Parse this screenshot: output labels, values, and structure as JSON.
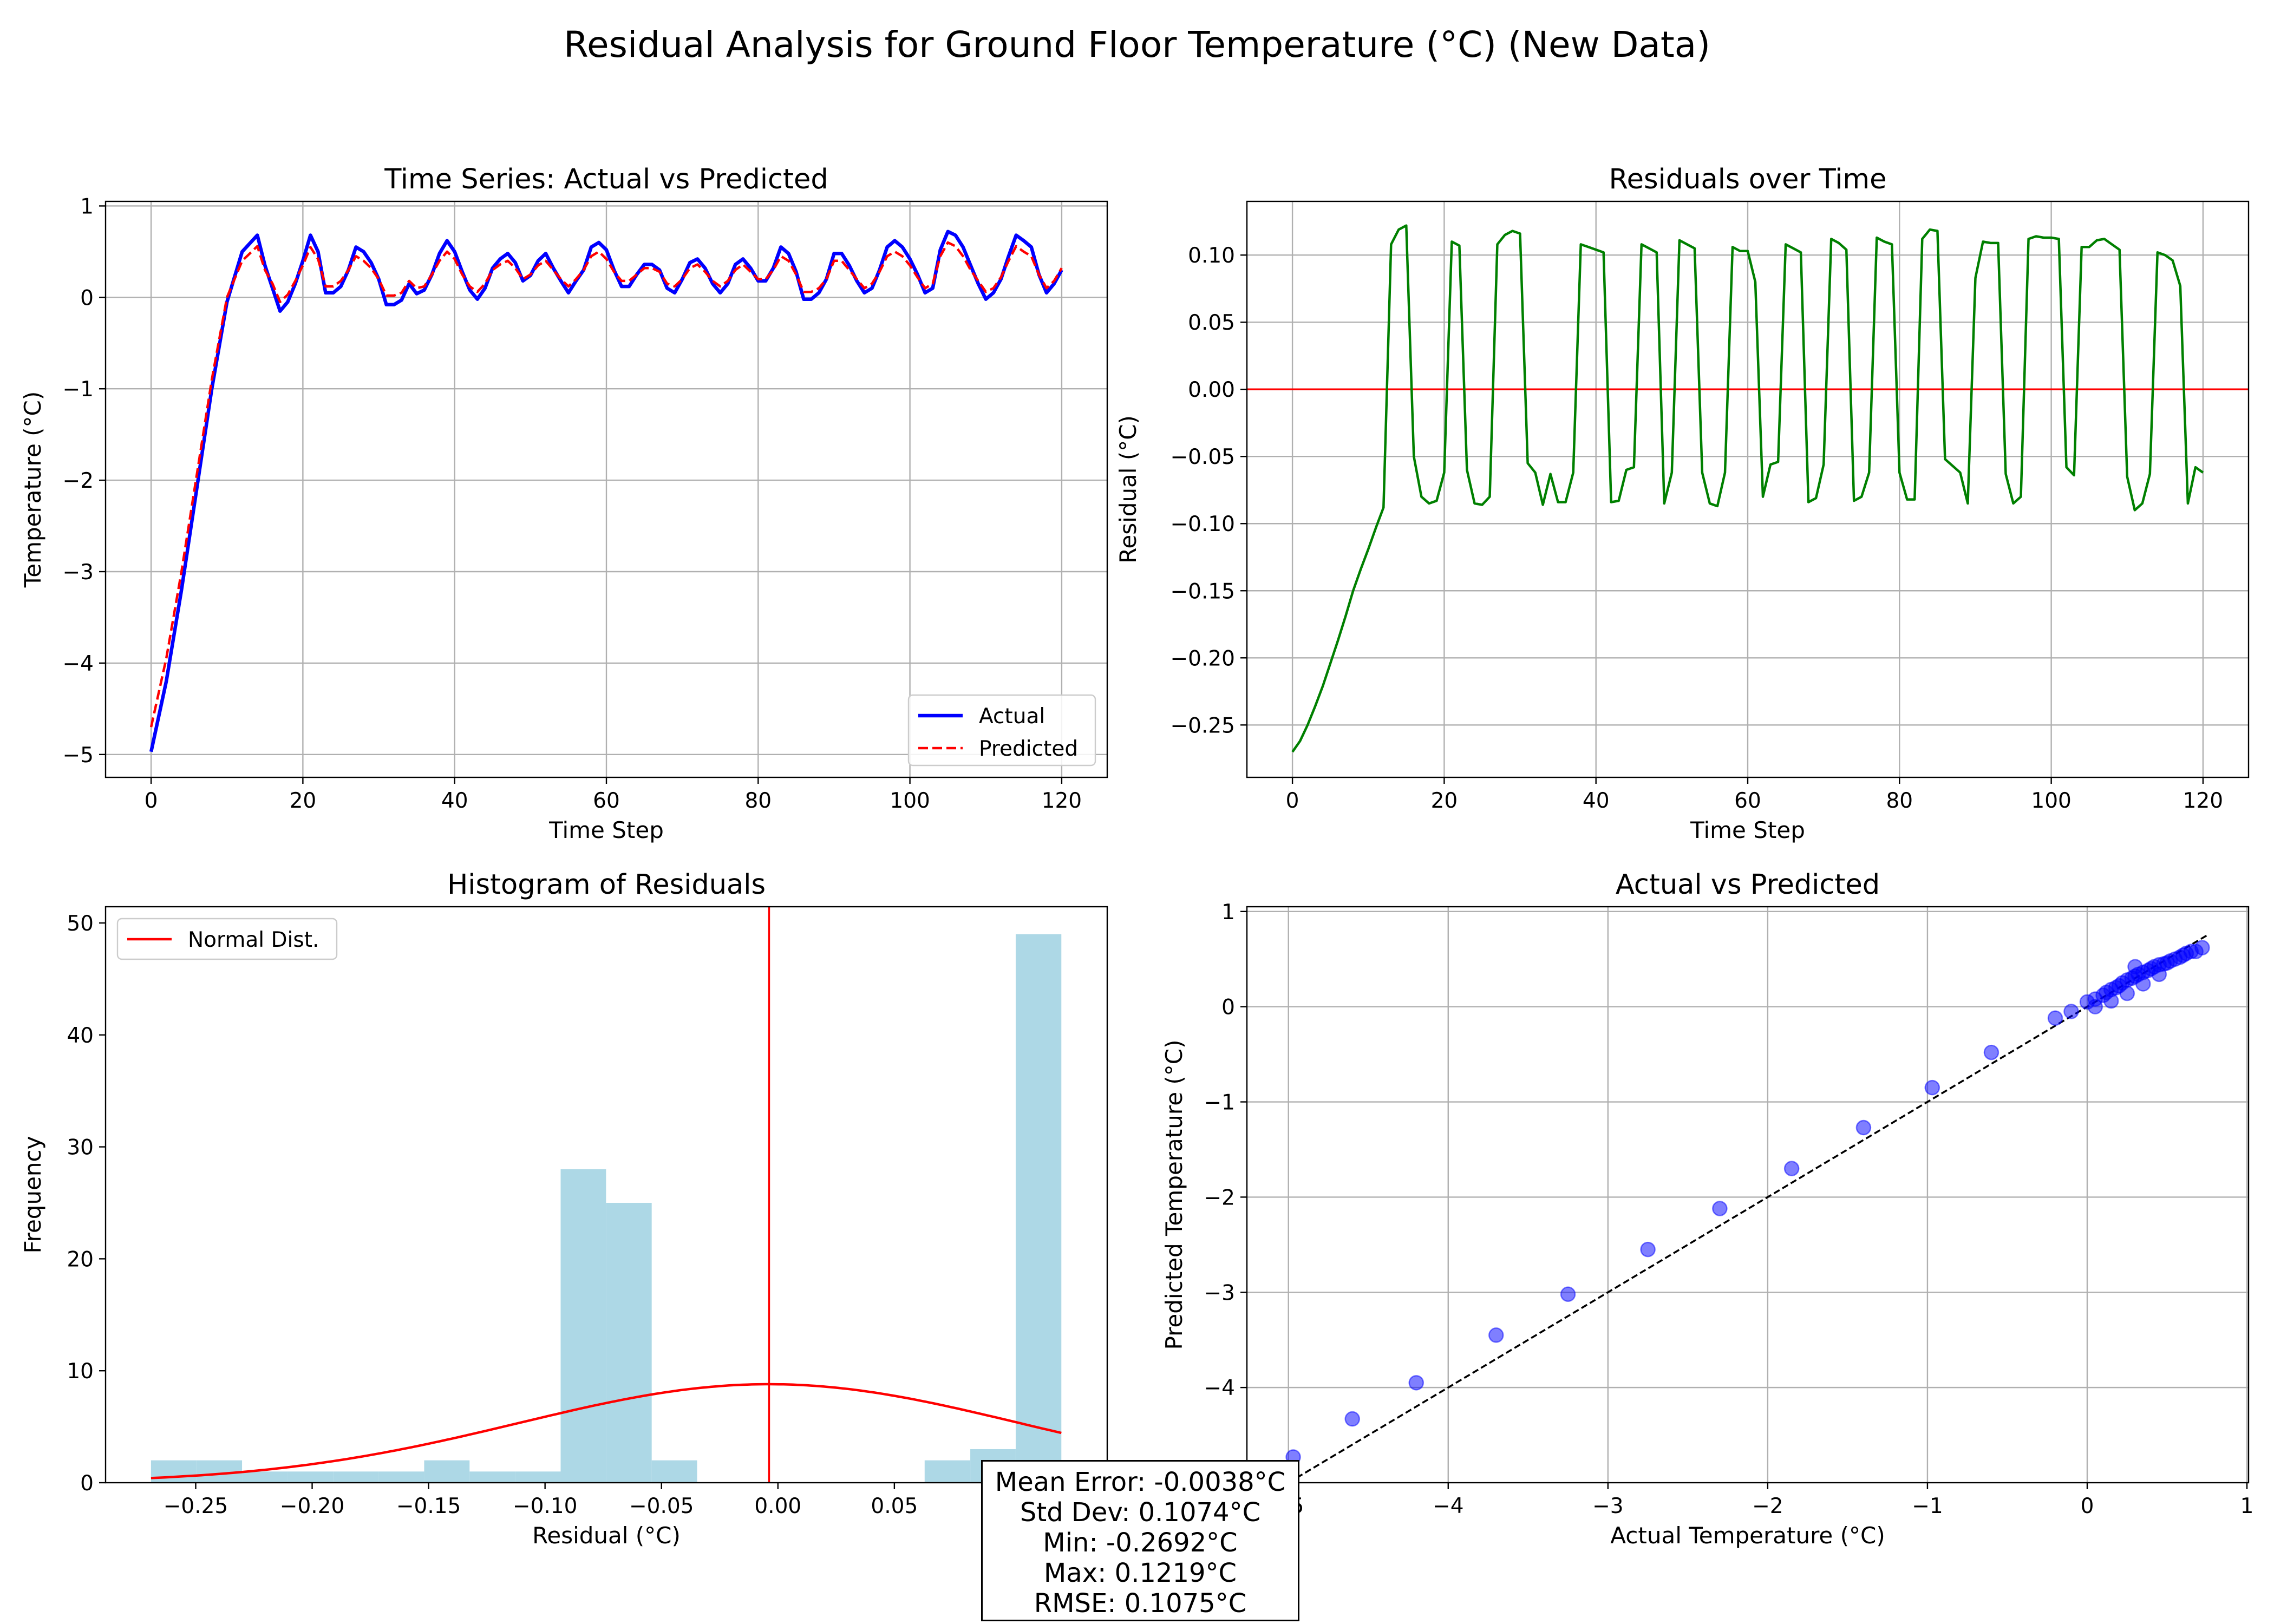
{
  "suptitle": "Residual Analysis for Ground Floor Temperature (°C) (New Data)",
  "colors": {
    "actual": "#0000ff",
    "predicted": "#ff0000",
    "residual": "#008000",
    "zero_line": "#ff0000",
    "hist_bar": "#add8e6",
    "normal_curve": "#ff0000",
    "scatter": "#0000ff",
    "identity": "#000000",
    "grid": "#b0b0b0"
  },
  "stats": {
    "mean": "Mean Error: -0.0038°C",
    "std": "Std Dev: 0.1074°C",
    "min": "Min: -0.2692°C",
    "max": "Max: 0.1219°C",
    "rmse": "RMSE: 0.1075°C"
  },
  "chart_data": [
    {
      "id": "ts",
      "type": "line",
      "title": "Time Series: Actual vs Predicted",
      "xlabel": "Time Step",
      "ylabel": "Temperature (°C)",
      "xlim": [
        -6,
        126
      ],
      "ylim": [
        -5.25,
        1.05
      ],
      "xticks": [
        0,
        20,
        40,
        60,
        80,
        100,
        120
      ],
      "yticks": [
        -5,
        -4,
        -3,
        -2,
        -1,
        0,
        1
      ],
      "grid": true,
      "legend": "lower right",
      "series": [
        {
          "name": "Actual",
          "style": "solid",
          "x": [
            0,
            2,
            4,
            6,
            8,
            10,
            12,
            14,
            15,
            16,
            17,
            18,
            19,
            20,
            21,
            22,
            23,
            24,
            25,
            26,
            27,
            28,
            29,
            30,
            31,
            32,
            33,
            34,
            35,
            36,
            37,
            38,
            39,
            40,
            41,
            42,
            43,
            44,
            45,
            46,
            47,
            48,
            49,
            50,
            51,
            52,
            53,
            54,
            55,
            56,
            57,
            58,
            59,
            60,
            61,
            62,
            63,
            64,
            65,
            66,
            67,
            68,
            69,
            70,
            71,
            72,
            73,
            74,
            75,
            76,
            77,
            78,
            79,
            80,
            81,
            82,
            83,
            84,
            85,
            86,
            87,
            88,
            89,
            90,
            91,
            92,
            93,
            94,
            95,
            96,
            97,
            98,
            99,
            100,
            101,
            102,
            103,
            104,
            105,
            106,
            107,
            108,
            109,
            110,
            111,
            112,
            113,
            114,
            115,
            116,
            117,
            118,
            119,
            120
          ],
          "y": [
            -4.97,
            -4.2,
            -3.2,
            -2.1,
            -1.0,
            -0.05,
            0.5,
            0.68,
            0.35,
            0.1,
            -0.15,
            -0.05,
            0.15,
            0.4,
            0.68,
            0.5,
            0.05,
            0.05,
            0.12,
            0.3,
            0.55,
            0.5,
            0.38,
            0.2,
            -0.08,
            -0.08,
            -0.03,
            0.15,
            0.04,
            0.08,
            0.25,
            0.48,
            0.62,
            0.5,
            0.28,
            0.08,
            -0.02,
            0.1,
            0.32,
            0.42,
            0.48,
            0.38,
            0.18,
            0.24,
            0.4,
            0.48,
            0.32,
            0.18,
            0.05,
            0.18,
            0.3,
            0.55,
            0.6,
            0.52,
            0.3,
            0.12,
            0.12,
            0.25,
            0.36,
            0.36,
            0.3,
            0.1,
            0.05,
            0.2,
            0.38,
            0.42,
            0.32,
            0.15,
            0.05,
            0.15,
            0.36,
            0.42,
            0.32,
            0.18,
            0.18,
            0.32,
            0.55,
            0.48,
            0.28,
            -0.02,
            -0.02,
            0.05,
            0.2,
            0.48,
            0.48,
            0.35,
            0.18,
            0.05,
            0.1,
            0.3,
            0.55,
            0.62,
            0.55,
            0.42,
            0.25,
            0.05,
            0.1,
            0.52,
            0.72,
            0.68,
            0.55,
            0.35,
            0.15,
            -0.02,
            0.05,
            0.2,
            0.45,
            0.68,
            0.62,
            0.55,
            0.25,
            0.05,
            0.15,
            0.3
          ]
        },
        {
          "name": "Predicted",
          "style": "dashed",
          "x": [
            0,
            2,
            4,
            6,
            8,
            10,
            12,
            14,
            15,
            16,
            17,
            18,
            19,
            20,
            21,
            22,
            23,
            24,
            25,
            26,
            27,
            28,
            29,
            30,
            31,
            32,
            33,
            34,
            35,
            36,
            37,
            38,
            39,
            40,
            41,
            42,
            43,
            44,
            45,
            46,
            47,
            48,
            49,
            50,
            51,
            52,
            53,
            54,
            55,
            56,
            57,
            58,
            59,
            60,
            61,
            62,
            63,
            64,
            65,
            66,
            67,
            68,
            69,
            70,
            71,
            72,
            73,
            74,
            75,
            76,
            77,
            78,
            79,
            80,
            81,
            82,
            83,
            84,
            85,
            86,
            87,
            88,
            89,
            90,
            91,
            92,
            93,
            94,
            95,
            96,
            97,
            98,
            99,
            100,
            101,
            102,
            103,
            104,
            105,
            106,
            107,
            108,
            109,
            110,
            111,
            112,
            113,
            114,
            115,
            116,
            117,
            118,
            119,
            120
          ],
          "y": [
            -4.7,
            -3.95,
            -3.0,
            -1.95,
            -0.9,
            0.0,
            0.4,
            0.56,
            0.3,
            0.15,
            -0.05,
            0.03,
            0.18,
            0.35,
            0.55,
            0.42,
            0.12,
            0.12,
            0.18,
            0.3,
            0.45,
            0.4,
            0.32,
            0.2,
            0.02,
            0.02,
            0.05,
            0.18,
            0.1,
            0.12,
            0.25,
            0.4,
            0.5,
            0.42,
            0.25,
            0.12,
            0.06,
            0.15,
            0.3,
            0.36,
            0.4,
            0.32,
            0.2,
            0.25,
            0.35,
            0.4,
            0.3,
            0.2,
            0.12,
            0.2,
            0.3,
            0.45,
            0.5,
            0.42,
            0.28,
            0.18,
            0.18,
            0.25,
            0.32,
            0.32,
            0.28,
            0.15,
            0.12,
            0.2,
            0.32,
            0.36,
            0.28,
            0.18,
            0.12,
            0.18,
            0.3,
            0.36,
            0.28,
            0.2,
            0.2,
            0.3,
            0.45,
            0.4,
            0.25,
            0.06,
            0.06,
            0.1,
            0.2,
            0.4,
            0.4,
            0.3,
            0.2,
            0.1,
            0.15,
            0.28,
            0.45,
            0.5,
            0.45,
            0.35,
            0.22,
            0.1,
            0.15,
            0.45,
            0.6,
            0.56,
            0.45,
            0.3,
            0.18,
            0.06,
            0.1,
            0.22,
            0.4,
            0.56,
            0.5,
            0.45,
            0.25,
            0.1,
            0.18,
            0.32
          ]
        }
      ]
    },
    {
      "id": "res",
      "type": "line",
      "title": "Residuals over Time",
      "xlabel": "Time Step",
      "ylabel": "Residual (°C)",
      "xlim": [
        -6,
        126
      ],
      "ylim": [
        -0.289,
        0.14
      ],
      "xticks": [
        0,
        20,
        40,
        60,
        80,
        100,
        120
      ],
      "yticks": [
        -0.25,
        -0.2,
        -0.15,
        -0.1,
        -0.05,
        0.0,
        0.05,
        0.1
      ],
      "ytick_labels": [
        "−0.25",
        "−0.20",
        "−0.15",
        "−0.10",
        "−0.05",
        "0.00",
        "0.05",
        "0.10"
      ],
      "grid": true,
      "zero_line": 0,
      "series": [
        {
          "name": "",
          "x": [
            0,
            1,
            2,
            3,
            4,
            5,
            6,
            7,
            8,
            9,
            10,
            11,
            12,
            13,
            14,
            15,
            16,
            17,
            18,
            19,
            20,
            21,
            22,
            23,
            24,
            25,
            26,
            27,
            28,
            29,
            30,
            31,
            32,
            33,
            34,
            35,
            36,
            37,
            38,
            39,
            40,
            41,
            42,
            43,
            44,
            45,
            46,
            47,
            48,
            49,
            50,
            51,
            52,
            53,
            54,
            55,
            56,
            57,
            58,
            59,
            60,
            61,
            62,
            63,
            64,
            65,
            66,
            67,
            68,
            69,
            70,
            71,
            72,
            73,
            74,
            75,
            76,
            77,
            78,
            79,
            80,
            81,
            82,
            83,
            84,
            85,
            86,
            87,
            88,
            89,
            90,
            91,
            92,
            93,
            94,
            95,
            96,
            97,
            98,
            99,
            100,
            101,
            102,
            103,
            104,
            105,
            106,
            107,
            108,
            109,
            110,
            111,
            112,
            113,
            114,
            115,
            116,
            117,
            118,
            119,
            120
          ],
          "y": [
            -0.27,
            -0.262,
            -0.25,
            -0.236,
            -0.221,
            -0.204,
            -0.187,
            -0.169,
            -0.15,
            -0.134,
            -0.119,
            -0.103,
            -0.088,
            0.108,
            0.119,
            0.122,
            -0.05,
            -0.08,
            -0.085,
            -0.083,
            -0.062,
            0.11,
            0.107,
            -0.06,
            -0.085,
            -0.086,
            -0.08,
            0.108,
            0.115,
            0.118,
            0.116,
            -0.055,
            -0.062,
            -0.086,
            -0.063,
            -0.084,
            -0.084,
            -0.062,
            0.108,
            0.106,
            0.104,
            0.102,
            -0.084,
            -0.083,
            -0.06,
            -0.058,
            0.108,
            0.105,
            0.102,
            -0.085,
            -0.062,
            0.111,
            0.108,
            0.105,
            -0.062,
            -0.085,
            -0.087,
            -0.062,
            0.106,
            0.103,
            0.103,
            0.08,
            -0.08,
            -0.056,
            -0.054,
            0.108,
            0.105,
            0.102,
            -0.084,
            -0.081,
            -0.056,
            0.112,
            0.109,
            0.104,
            -0.083,
            -0.08,
            -0.062,
            0.113,
            0.11,
            0.108,
            -0.062,
            -0.082,
            -0.082,
            0.112,
            0.119,
            0.118,
            -0.052,
            -0.057,
            -0.062,
            -0.085,
            0.083,
            0.11,
            0.109,
            0.109,
            -0.063,
            -0.085,
            -0.08,
            0.112,
            0.114,
            0.113,
            0.113,
            0.112,
            -0.058,
            -0.064,
            0.106,
            0.106,
            0.111,
            0.112,
            0.108,
            0.104,
            -0.065,
            -0.09,
            -0.085,
            -0.063,
            0.102,
            0.1,
            0.096,
            0.077,
            -0.085,
            -0.058,
            -0.062
          ]
        }
      ]
    },
    {
      "id": "hist",
      "type": "bar",
      "title": "Histogram of Residuals",
      "xlabel": "Residual (°C)",
      "ylabel": "Frequency",
      "xlim": [
        -0.2887,
        0.1414
      ],
      "ylim": [
        0,
        51.45
      ],
      "xticks": [
        -0.25,
        -0.2,
        -0.15,
        -0.1,
        -0.05,
        0.0,
        0.05,
        0.1
      ],
      "xtick_labels": [
        "−0.25",
        "−0.20",
        "−0.15",
        "−0.10",
        "−0.05",
        "0.00",
        "0.05",
        "0.10"
      ],
      "yticks": [
        0,
        10,
        20,
        30,
        40,
        50
      ],
      "grid": false,
      "legend": "upper left",
      "bin_edges": [
        -0.2692,
        -0.2497,
        -0.2301,
        -0.2106,
        -0.191,
        -0.1715,
        -0.1519,
        -0.1324,
        -0.1129,
        -0.0933,
        -0.0738,
        -0.0542,
        -0.0347,
        -0.0152,
        0.0044,
        0.0239,
        0.0435,
        0.063,
        0.0826,
        0.1021,
        0.1217
      ],
      "counts": [
        2,
        2,
        1,
        1,
        1,
        1,
        2,
        1,
        1,
        28,
        25,
        2,
        0,
        0,
        0,
        0,
        0,
        2,
        3,
        49
      ],
      "vline": -0.0038,
      "normal_curve": {
        "name": "Normal Dist.",
        "mean": -0.0038,
        "std": 0.1074,
        "peak": 8.8
      }
    },
    {
      "id": "scatter",
      "type": "scatter",
      "title": "Actual vs Predicted",
      "xlabel": "Actual Temperature (°C)",
      "ylabel": "Predicted Temperature (°C)",
      "xlim": [
        -5.26,
        1.01
      ],
      "ylim": [
        -5.0,
        1.05
      ],
      "xticks": [
        -5,
        -4,
        -3,
        -2,
        -1,
        0,
        1
      ],
      "yticks": [
        -4,
        -3,
        -2,
        -1,
        0,
        1
      ],
      "grid": true,
      "identity_line": [
        -5.0,
        0.75
      ],
      "points": {
        "x": [
          -4.97,
          -4.6,
          -4.2,
          -3.7,
          -3.25,
          -2.75,
          -2.3,
          -1.85,
          -1.4,
          -0.97,
          -0.6,
          -0.2,
          -0.1,
          0.0,
          0.05,
          0.1,
          0.12,
          0.15,
          0.18,
          0.2,
          0.22,
          0.25,
          0.28,
          0.3,
          0.32,
          0.35,
          0.38,
          0.4,
          0.42,
          0.45,
          0.48,
          0.5,
          0.52,
          0.55,
          0.58,
          0.6,
          0.62,
          0.65,
          0.68,
          0.72,
          0.15,
          0.25,
          0.35,
          0.05,
          0.3,
          0.45
        ],
        "y": [
          -4.73,
          -4.33,
          -3.95,
          -3.45,
          -3.02,
          -2.55,
          -2.12,
          -1.7,
          -1.27,
          -0.85,
          -0.48,
          -0.12,
          -0.05,
          0.05,
          0.08,
          0.12,
          0.15,
          0.18,
          0.2,
          0.22,
          0.25,
          0.28,
          0.3,
          0.32,
          0.34,
          0.36,
          0.38,
          0.4,
          0.42,
          0.44,
          0.45,
          0.46,
          0.48,
          0.5,
          0.52,
          0.54,
          0.56,
          0.58,
          0.58,
          0.62,
          0.06,
          0.14,
          0.24,
          0.0,
          0.42,
          0.34
        ]
      }
    }
  ]
}
